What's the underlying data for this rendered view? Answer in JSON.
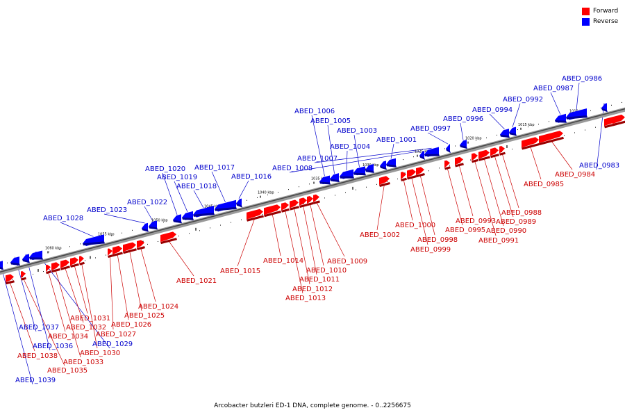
{
  "colors": {
    "forward": "#ff0000",
    "reverse": "#0000ff",
    "forward_label": "#cc0000",
    "reverse_label": "#0000cc"
  },
  "legend": [
    {
      "label": "Forward",
      "color": "#ff0000"
    },
    {
      "label": "Reverse",
      "color": "#0000ff"
    }
  ],
  "caption": "Arcobacter butzleri ED-1 DNA, complete genome. - 0..2256675",
  "scale_labels": [
    "1010 kbp",
    "1015 kbp",
    "1020 kbp",
    "1025 kbp",
    "1030 kbp",
    "1035 kbp",
    "1040 kbp",
    "1045 kbp",
    "1050 kbp",
    "1055 kbp",
    "1060 kbp"
  ],
  "genes": [
    {
      "id": "ABED_0983",
      "strand": "reverse"
    },
    {
      "id": "ABED_0984",
      "strand": "forward"
    },
    {
      "id": "ABED_0985",
      "strand": "forward"
    },
    {
      "id": "ABED_0986",
      "strand": "reverse"
    },
    {
      "id": "ABED_0987",
      "strand": "reverse"
    },
    {
      "id": "ABED_0988",
      "strand": "forward"
    },
    {
      "id": "ABED_0989",
      "strand": "forward"
    },
    {
      "id": "ABED_0990",
      "strand": "forward"
    },
    {
      "id": "ABED_0991",
      "strand": "forward"
    },
    {
      "id": "ABED_0992",
      "strand": "reverse"
    },
    {
      "id": "ABED_0993",
      "strand": "forward"
    },
    {
      "id": "ABED_0994",
      "strand": "reverse"
    },
    {
      "id": "ABED_0995",
      "strand": "forward"
    },
    {
      "id": "ABED_0996",
      "strand": "reverse"
    },
    {
      "id": "ABED_0997",
      "strand": "reverse"
    },
    {
      "id": "ABED_0998",
      "strand": "forward"
    },
    {
      "id": "ABED_0999",
      "strand": "forward"
    },
    {
      "id": "ABED_1000",
      "strand": "forward"
    },
    {
      "id": "ABED_1001",
      "strand": "reverse"
    },
    {
      "id": "ABED_1002",
      "strand": "forward"
    },
    {
      "id": "ABED_1003",
      "strand": "reverse"
    },
    {
      "id": "ABED_1004",
      "strand": "reverse"
    },
    {
      "id": "ABED_1005",
      "strand": "reverse"
    },
    {
      "id": "ABED_1006",
      "strand": "reverse"
    },
    {
      "id": "ABED_1007",
      "strand": "reverse"
    },
    {
      "id": "ABED_1008",
      "strand": "reverse"
    },
    {
      "id": "ABED_1009",
      "strand": "forward"
    },
    {
      "id": "ABED_1010",
      "strand": "forward"
    },
    {
      "id": "ABED_1011",
      "strand": "forward"
    },
    {
      "id": "ABED_1012",
      "strand": "forward"
    },
    {
      "id": "ABED_1013",
      "strand": "forward"
    },
    {
      "id": "ABED_1014",
      "strand": "forward"
    },
    {
      "id": "ABED_1015",
      "strand": "forward"
    },
    {
      "id": "ABED_1016",
      "strand": "reverse"
    },
    {
      "id": "ABED_1017",
      "strand": "reverse"
    },
    {
      "id": "ABED_1018",
      "strand": "reverse"
    },
    {
      "id": "ABED_1019",
      "strand": "reverse"
    },
    {
      "id": "ABED_1020",
      "strand": "reverse"
    },
    {
      "id": "ABED_1021",
      "strand": "forward"
    },
    {
      "id": "ABED_1022",
      "strand": "reverse"
    },
    {
      "id": "ABED_1023",
      "strand": "reverse"
    },
    {
      "id": "ABED_1024",
      "strand": "forward"
    },
    {
      "id": "ABED_1025",
      "strand": "forward"
    },
    {
      "id": "ABED_1026",
      "strand": "forward"
    },
    {
      "id": "ABED_1027",
      "strand": "forward"
    },
    {
      "id": "ABED_1028",
      "strand": "reverse"
    },
    {
      "id": "ABED_1029",
      "strand": "reverse"
    },
    {
      "id": "ABED_1030",
      "strand": "forward"
    },
    {
      "id": "ABED_1031",
      "strand": "forward"
    },
    {
      "id": "ABED_1032",
      "strand": "forward"
    },
    {
      "id": "ABED_1033",
      "strand": "forward"
    },
    {
      "id": "ABED_1034",
      "strand": "forward"
    },
    {
      "id": "ABED_1035",
      "strand": "forward"
    },
    {
      "id": "ABED_1036",
      "strand": "reverse"
    },
    {
      "id": "ABED_1037",
      "strand": "reverse"
    },
    {
      "id": "ABED_1038",
      "strand": "forward"
    },
    {
      "id": "ABED_1039",
      "strand": "reverse"
    }
  ]
}
